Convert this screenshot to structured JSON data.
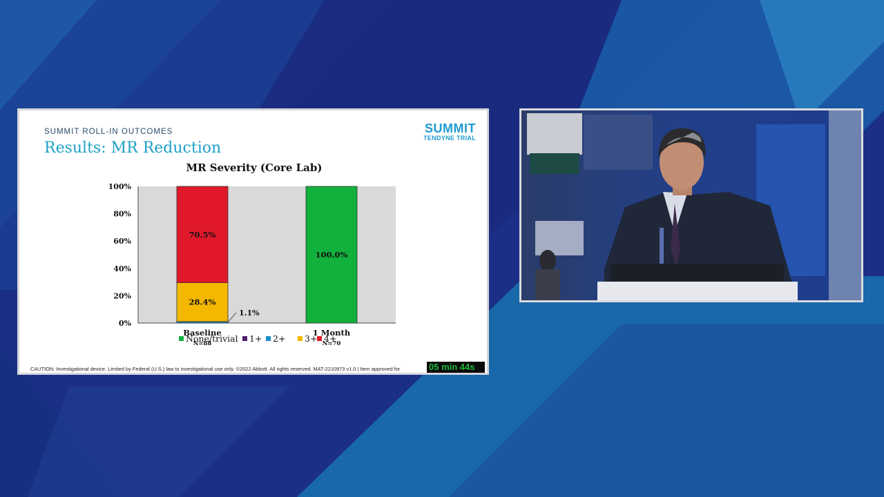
{
  "slide": {
    "eyebrow": "SUMMIT ROLL-IN OUTCOMES",
    "title": "Results: MR Reduction",
    "logo_line1": "SUMMIT",
    "logo_line2": "TENDYNE TRIAL",
    "footer": "CAUTION: Investigational device. Limited by Federal (U.S.) law to investigational use only. ©2022 Abbott. All rights reserved. MAT-2210973 v1.0  | Item approved for",
    "timer": "05 min 44s"
  },
  "chart_data": {
    "type": "bar",
    "stacked": true,
    "title": "MR Severity (Core Lab)",
    "categories": [
      "Baseline",
      "1 Month"
    ],
    "category_n": [
      "N=88",
      "N=70"
    ],
    "y_ticks": [
      "0%",
      "20%",
      "40%",
      "60%",
      "80%",
      "100%"
    ],
    "ylim": [
      0,
      100
    ],
    "series": [
      {
        "name": "None/trivial",
        "color": "#12b03c",
        "values": [
          0,
          100.0
        ],
        "labels": [
          "",
          "100.0%"
        ]
      },
      {
        "name": "1+",
        "color": "#4b1e6e",
        "values": [
          0,
          0
        ],
        "labels": [
          "",
          ""
        ]
      },
      {
        "name": "2+",
        "color": "#1a8fc9",
        "values": [
          1.1,
          0
        ],
        "labels": [
          "1.1%",
          ""
        ]
      },
      {
        "name": "3+",
        "color": "#f5b800",
        "values": [
          28.4,
          0
        ],
        "labels": [
          "28.4%",
          ""
        ]
      },
      {
        "name": "4+",
        "color": "#e0182a",
        "values": [
          70.5,
          0
        ],
        "labels": [
          "70.5%",
          ""
        ]
      }
    ],
    "plot_background": "#d9d9d9",
    "legend_position": "bottom"
  },
  "colors": {
    "background": "#1b2f86",
    "accent_teal": "#1a6fae",
    "title_blue": "#1fa0c6"
  }
}
